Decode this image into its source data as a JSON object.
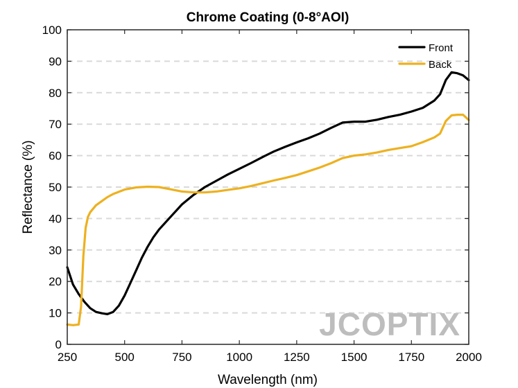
{
  "chart_data": {
    "type": "line",
    "title": "Chrome Coating (0-8°AOI)",
    "xlabel": "Wavelength (nm)",
    "ylabel": "Reflectance (%)",
    "xlim": [
      250,
      2000
    ],
    "ylim": [
      0,
      100
    ],
    "xticks": [
      250,
      500,
      750,
      1000,
      1250,
      1500,
      1750,
      2000
    ],
    "yticks": [
      0,
      10,
      20,
      30,
      40,
      50,
      60,
      70,
      80,
      90,
      100
    ],
    "grid": "horizontal-dashed",
    "legend_position": "top-right",
    "series": [
      {
        "name": "Front",
        "color": "#000000",
        "x": [
          250,
          275,
          300,
          325,
          350,
          375,
          400,
          425,
          450,
          475,
          500,
          525,
          550,
          575,
          600,
          625,
          650,
          700,
          750,
          800,
          850,
          900,
          950,
          1000,
          1050,
          1100,
          1150,
          1200,
          1250,
          1300,
          1350,
          1400,
          1450,
          1500,
          1550,
          1600,
          1650,
          1700,
          1750,
          1800,
          1850,
          1875,
          1900,
          1925,
          1950,
          1975,
          2000
        ],
        "y": [
          24.5,
          19,
          16,
          13.5,
          11.5,
          10.3,
          9.9,
          9.6,
          10.3,
          12.3,
          15.5,
          19.5,
          23.5,
          27.5,
          31,
          34,
          36.5,
          40.5,
          44.5,
          47.5,
          50,
          52,
          54,
          55.8,
          57.6,
          59.5,
          61.3,
          62.8,
          64.2,
          65.5,
          67,
          68.8,
          70.5,
          70.8,
          70.8,
          71.4,
          72.3,
          73,
          74,
          75.2,
          77.5,
          79.5,
          84,
          86.5,
          86.2,
          85.5,
          84
        ]
      },
      {
        "name": "Back",
        "color": "#EDB120",
        "x": [
          250,
          275,
          300,
          310,
          320,
          330,
          340,
          350,
          375,
          400,
          425,
          450,
          500,
          550,
          600,
          650,
          700,
          750,
          800,
          850,
          900,
          950,
          1000,
          1050,
          1100,
          1150,
          1200,
          1250,
          1300,
          1350,
          1400,
          1450,
          1500,
          1550,
          1600,
          1650,
          1700,
          1750,
          1800,
          1850,
          1875,
          1900,
          1925,
          1950,
          1975,
          2000
        ],
        "y": [
          6.3,
          6.1,
          6.3,
          12,
          28,
          37,
          40.5,
          42,
          44.2,
          45.5,
          46.8,
          47.8,
          49.2,
          49.9,
          50.1,
          50,
          49.3,
          48.6,
          48.3,
          48.3,
          48.6,
          49.1,
          49.6,
          50.3,
          51.2,
          52.1,
          52.9,
          53.8,
          55,
          56.2,
          57.6,
          59.2,
          60,
          60.4,
          61,
          61.8,
          62.4,
          63,
          64.3,
          65.8,
          67,
          71,
          72.8,
          73,
          73,
          71.3
        ]
      }
    ]
  },
  "watermark": "JCOPTIX"
}
